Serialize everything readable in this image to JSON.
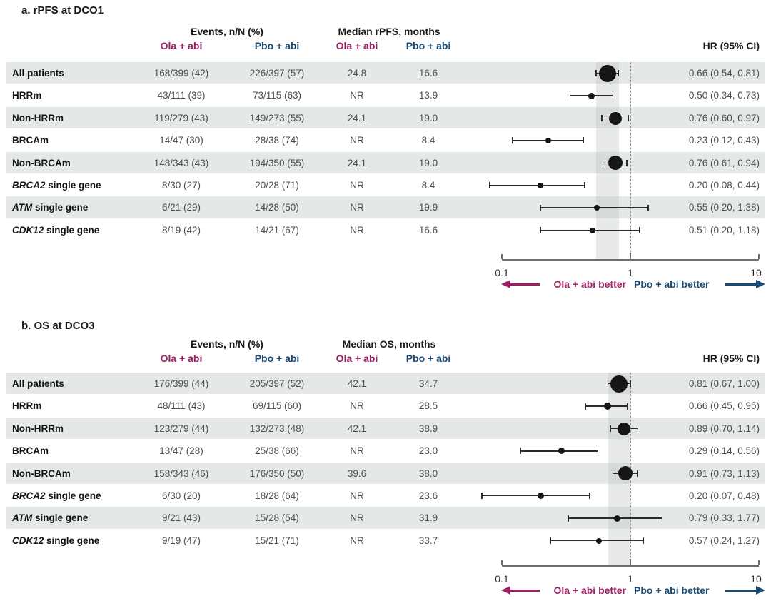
{
  "figure": {
    "colors": {
      "ola": "#9C2063",
      "pbo": "#1B4B74",
      "row_shade": "#E4E9E7",
      "band": "#B9BEC0",
      "axis": "#6E6E6E",
      "label_text": "#141414",
      "value_text": "#4D4D4D",
      "marker": "#161616",
      "whisker": "#2A2A2A",
      "ref_line": "#8F8F8F"
    }
  },
  "chart_data": [
    {
      "type": "forest",
      "title": "a. rPFS at DCO1",
      "events_header": "Events, n/N (%)",
      "median_header": "Median rPFS, months",
      "group_labels": [
        "Ola + abi",
        "Pbo + abi"
      ],
      "hr_header": "HR (95% CI)",
      "xscale": "log10",
      "xlim": [
        0.1,
        10
      ],
      "xticks": [
        0.1,
        1,
        10
      ],
      "xtick_labels": [
        "0.1",
        "1",
        "10"
      ],
      "reference_line": 1,
      "shaded_band_ci": [
        0.54,
        0.81
      ],
      "legend_left": "Ola + abi better",
      "legend_right": "Pbo + abi better",
      "rows": [
        {
          "label_italic": "",
          "label_rest": "All patients",
          "events_ola": "168/399 (42)",
          "events_pbo": "226/397 (57)",
          "median_ola": "24.8",
          "median_pbo": "16.6",
          "hr": 0.66,
          "ci_low": 0.54,
          "ci_high": 0.81,
          "hr_text": "0.66 (0.54, 0.81)",
          "marker_px": 24
        },
        {
          "label_italic": "",
          "label_rest": "HRRm",
          "events_ola": "43/111 (39)",
          "events_pbo": "73/115 (63)",
          "median_ola": "NR",
          "median_pbo": "13.9",
          "hr": 0.5,
          "ci_low": 0.34,
          "ci_high": 0.73,
          "hr_text": "0.50 (0.34, 0.73)",
          "marker_px": 9
        },
        {
          "label_italic": "",
          "label_rest": "Non-HRRm",
          "events_ola": "119/279 (43)",
          "events_pbo": "149/273 (55)",
          "median_ola": "24.1",
          "median_pbo": "19.0",
          "hr": 0.76,
          "ci_low": 0.6,
          "ci_high": 0.97,
          "hr_text": "0.76 (0.60, 0.97)",
          "marker_px": 18
        },
        {
          "label_italic": "",
          "label_rest": "BRCAm",
          "events_ola": "14/47 (30)",
          "events_pbo": "28/38 (74)",
          "median_ola": "NR",
          "median_pbo": "8.4",
          "hr": 0.23,
          "ci_low": 0.12,
          "ci_high": 0.43,
          "hr_text": "0.23 (0.12, 0.43)",
          "marker_px": 8
        },
        {
          "label_italic": "",
          "label_rest": "Non-BRCAm",
          "events_ola": "148/343 (43)",
          "events_pbo": "194/350 (55)",
          "median_ola": "24.1",
          "median_pbo": "19.0",
          "hr": 0.76,
          "ci_low": 0.61,
          "ci_high": 0.94,
          "hr_text": "0.76 (0.61, 0.94)",
          "marker_px": 20
        },
        {
          "label_italic": "BRCA2",
          "label_rest": " single gene",
          "events_ola": "8/30 (27)",
          "events_pbo": "20/28 (71)",
          "median_ola": "NR",
          "median_pbo": "8.4",
          "hr": 0.2,
          "ci_low": 0.08,
          "ci_high": 0.44,
          "hr_text": "0.20 (0.08, 0.44)",
          "marker_px": 8
        },
        {
          "label_italic": "ATM",
          "label_rest": " single gene",
          "events_ola": "6/21 (29)",
          "events_pbo": "14/28 (50)",
          "median_ola": "NR",
          "median_pbo": "19.9",
          "hr": 0.55,
          "ci_low": 0.2,
          "ci_high": 1.38,
          "hr_text": "0.55 (0.20, 1.38)",
          "marker_px": 8
        },
        {
          "label_italic": "CDK12",
          "label_rest": " single gene",
          "events_ola": "8/19 (42)",
          "events_pbo": "14/21 (67)",
          "median_ola": "NR",
          "median_pbo": "16.6",
          "hr": 0.51,
          "ci_low": 0.2,
          "ci_high": 1.18,
          "hr_text": "0.51 (0.20, 1.18)",
          "marker_px": 8
        }
      ]
    },
    {
      "type": "forest",
      "title": "b. OS at DCO3",
      "events_header": "Events, n/N (%)",
      "median_header": "Median OS, months",
      "group_labels": [
        "Ola + abi",
        "Pbo + abi"
      ],
      "hr_header": "HR (95% CI)",
      "xscale": "log10",
      "xlim": [
        0.1,
        10
      ],
      "xticks": [
        0.1,
        1,
        10
      ],
      "xtick_labels": [
        "0.1",
        "1",
        "10"
      ],
      "reference_line": 1,
      "shaded_band_ci": [
        0.67,
        1.0
      ],
      "legend_left": "Ola + abi better",
      "legend_right": "Pbo + abi better",
      "rows": [
        {
          "label_italic": "",
          "label_rest": "All patients",
          "events_ola": "176/399 (44)",
          "events_pbo": "205/397 (52)",
          "median_ola": "42.1",
          "median_pbo": "34.7",
          "hr": 0.81,
          "ci_low": 0.67,
          "ci_high": 1.0,
          "hr_text": "0.81 (0.67, 1.00)",
          "marker_px": 24
        },
        {
          "label_italic": "",
          "label_rest": "HRRm",
          "events_ola": "48/111 (43)",
          "events_pbo": "69/115 (60)",
          "median_ola": "NR",
          "median_pbo": "28.5",
          "hr": 0.66,
          "ci_low": 0.45,
          "ci_high": 0.95,
          "hr_text": "0.66 (0.45, 0.95)",
          "marker_px": 10
        },
        {
          "label_italic": "",
          "label_rest": "Non-HRRm",
          "events_ola": "123/279 (44)",
          "events_pbo": "132/273 (48)",
          "median_ola": "42.1",
          "median_pbo": "38.9",
          "hr": 0.89,
          "ci_low": 0.7,
          "ci_high": 1.14,
          "hr_text": "0.89 (0.70, 1.14)",
          "marker_px": 18
        },
        {
          "label_italic": "",
          "label_rest": "BRCAm",
          "events_ola": "13/47 (28)",
          "events_pbo": "25/38 (66)",
          "median_ola": "NR",
          "median_pbo": "23.0",
          "hr": 0.29,
          "ci_low": 0.14,
          "ci_high": 0.56,
          "hr_text": "0.29 (0.14, 0.56)",
          "marker_px": 9
        },
        {
          "label_italic": "",
          "label_rest": "Non-BRCAm",
          "events_ola": "158/343 (46)",
          "events_pbo": "176/350 (50)",
          "median_ola": "39.6",
          "median_pbo": "38.0",
          "hr": 0.91,
          "ci_low": 0.73,
          "ci_high": 1.13,
          "hr_text": "0.91 (0.73, 1.13)",
          "marker_px": 20
        },
        {
          "label_italic": "BRCA2",
          "label_rest": " single gene",
          "events_ola": "6/30 (20)",
          "events_pbo": "18/28 (64)",
          "median_ola": "NR",
          "median_pbo": "23.6",
          "hr": 0.2,
          "ci_low": 0.07,
          "ci_high": 0.48,
          "hr_text": "0.20 (0.07, 0.48)",
          "marker_px": 9
        },
        {
          "label_italic": "ATM",
          "label_rest": " single gene",
          "events_ola": "9/21 (43)",
          "events_pbo": "15/28 (54)",
          "median_ola": "NR",
          "median_pbo": "31.9",
          "hr": 0.79,
          "ci_low": 0.33,
          "ci_high": 1.77,
          "hr_text": "0.79 (0.33, 1.77)",
          "marker_px": 9
        },
        {
          "label_italic": "CDK12",
          "label_rest": " single gene",
          "events_ola": "9/19 (47)",
          "events_pbo": "15/21 (71)",
          "median_ola": "NR",
          "median_pbo": "33.7",
          "hr": 0.57,
          "ci_low": 0.24,
          "ci_high": 1.27,
          "hr_text": "0.57 (0.24, 1.27)",
          "marker_px": 8
        }
      ]
    }
  ]
}
